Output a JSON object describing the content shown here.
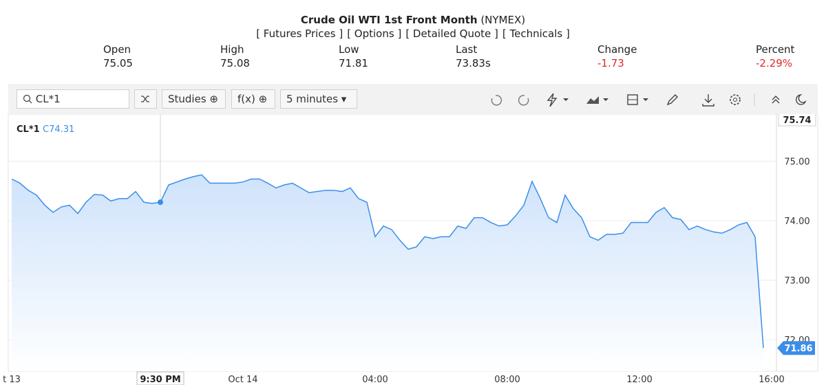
{
  "header": {
    "title": "Crude Oil WTI 1st Front Month",
    "exchange": "(NYMEX)",
    "links": [
      "[ Futures Prices ]",
      "[ Options ]",
      "[ Detailed Quote ]",
      "[ Technicals ]"
    ]
  },
  "quote": {
    "labels": [
      "Open",
      "High",
      "Low",
      "Last",
      "Change",
      "Percent"
    ],
    "values": [
      "75.05",
      "75.08",
      "71.81",
      "73.83s",
      "-1.73",
      "-2.29%"
    ]
  },
  "toolbar": {
    "symbol": "CL*1",
    "studies": "Studies",
    "function": "f(x)",
    "interval": "5 minutes"
  },
  "chart_data": {
    "type": "line",
    "crosshair_label": "C74.31",
    "categories": [
      "t 13",
      null,
      null,
      null,
      null,
      null,
      null,
      null,
      null,
      null,
      null,
      null,
      null,
      null,
      null,
      null,
      null,
      null,
      "9:30 PM",
      null,
      null,
      null,
      null,
      null,
      null,
      null,
      null,
      null,
      "Oct 14",
      null,
      null,
      null,
      null,
      null,
      null,
      null,
      null,
      null,
      null,
      null,
      null,
      null,
      null,
      null,
      "04:00",
      null,
      null,
      null,
      null,
      null,
      null,
      null,
      null,
      null,
      null,
      null,
      null,
      null,
      null,
      null,
      "08:00",
      null,
      null,
      null,
      null,
      null,
      null,
      null,
      null,
      null,
      null,
      null,
      null,
      null,
      null,
      null,
      "12:00",
      null,
      null,
      null,
      null,
      null,
      null,
      null,
      null,
      null,
      null,
      null,
      null,
      null,
      null,
      null,
      "16:00"
    ],
    "series": [
      {
        "name": "CL*1",
        "color": "#3b8ee8",
        "values": [
          74.7,
          74.63,
          74.51,
          74.43,
          74.26,
          74.14,
          74.23,
          74.26,
          74.12,
          74.31,
          74.44,
          74.43,
          74.33,
          74.37,
          74.37,
          74.49,
          74.31,
          74.29,
          74.31,
          74.6,
          74.65,
          74.7,
          74.74,
          74.77,
          74.63,
          74.63,
          74.63,
          74.63,
          74.65,
          74.7,
          74.7,
          74.63,
          74.55,
          74.6,
          74.63,
          74.55,
          74.47,
          74.49,
          74.51,
          74.51,
          74.49,
          74.55,
          74.37,
          74.31,
          73.73,
          73.91,
          73.85,
          73.67,
          73.52,
          73.56,
          73.73,
          73.7,
          73.73,
          73.73,
          73.91,
          73.87,
          74.05,
          74.05,
          73.97,
          73.91,
          73.93,
          74.08,
          74.26,
          74.66,
          74.37,
          74.05,
          73.97,
          74.43,
          74.2,
          74.05,
          73.73,
          73.67,
          73.77,
          73.77,
          73.79,
          73.97,
          73.97,
          73.97,
          74.14,
          74.22,
          74.05,
          74.02,
          73.85,
          73.91,
          73.85,
          73.81,
          73.79,
          73.85,
          73.93,
          73.97,
          73.73,
          71.86,
          null
        ]
      }
    ],
    "ylim": [
      71.47,
      75.79
    ],
    "yticks": [
      {
        "value": 72,
        "label": "72.00"
      },
      {
        "value": 73,
        "label": "73.00"
      },
      {
        "value": 74,
        "label": "74.00"
      },
      {
        "value": 75,
        "label": "75.00"
      },
      75.74
    ],
    "grid": true
  }
}
